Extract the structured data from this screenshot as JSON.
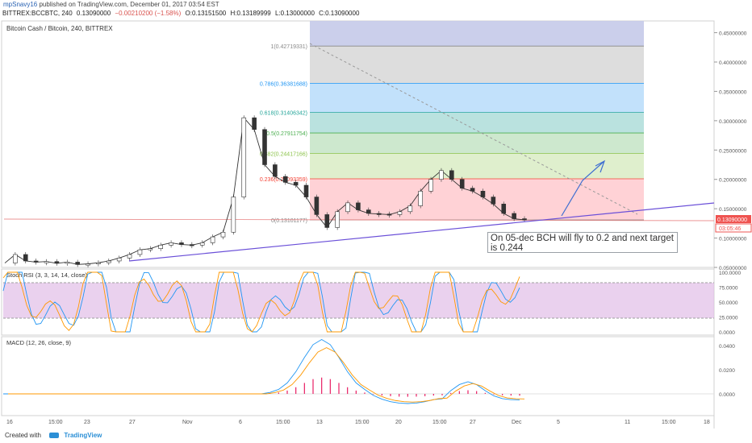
{
  "header": {
    "user": "mpSnavy16",
    "published": "published on TradingView.com, December 01, 2017 03:54 EST",
    "symbol": "BITTREX:BCCBTC, 240",
    "last": "0.13090000",
    "change": "−0.00210200 (−1.58%)",
    "open": "O:0.13151500",
    "high": "H:0.13189999",
    "low": "L:0.13000000",
    "close": "C:0.13090000"
  },
  "chart_title": "Bitcoin Cash / Bitcoin, 240, BITTREX",
  "price_axis": {
    "ticks": [
      "0.45000000",
      "0.40000000",
      "0.35000000",
      "0.30000000",
      "0.25000000",
      "0.20000000",
      "0.15000000",
      "0.10000000",
      "0.05000000"
    ],
    "current_price": "0.13090000",
    "countdown": "03:05:46"
  },
  "x_axis": {
    "labels": [
      "16",
      "15:00",
      "23",
      "27",
      "Nov",
      "6",
      "15:00",
      "13",
      "15:00",
      "20",
      "15:00",
      "27",
      "Dec",
      "5",
      "11",
      "15:00",
      "18"
    ]
  },
  "fib_levels": [
    {
      "label": "1(0.42719331)",
      "value": 0.42719331,
      "color": "#888888"
    },
    {
      "label": "0.786(0.36381688)",
      "value": 0.36381688,
      "color": "#2196f3"
    },
    {
      "label": "0.618(0.31406342)",
      "value": 0.31406342,
      "color": "#26a69a"
    },
    {
      "label": "0.5(0.27911754)",
      "value": 0.27911754,
      "color": "#4caf50"
    },
    {
      "label": "0.382(0.24417166)",
      "value": 0.24417166,
      "color": "#8bc34a"
    },
    {
      "label": "0.236(0.20093359)",
      "value": 0.20093359,
      "color": "#f44336"
    },
    {
      "label": "0(0.13101177)",
      "value": 0.13101177,
      "color": "#888888"
    }
  ],
  "annotation": "On 05-dec BCH will fly to 0.2 and next target is 0.244",
  "stoch": {
    "title": "Stoch RSI (3, 3, 14, 14, close)",
    "ticks": [
      "100.0000",
      "75.0000",
      "50.0000",
      "25.0000",
      "0.0000"
    ]
  },
  "macd": {
    "title": "MACD (12, 26, close, 9)",
    "ticks": [
      "0.0400",
      "0.0200",
      "0.0000"
    ]
  },
  "footer": {
    "created": "Created with",
    "brand": "TradingView"
  },
  "chart_data": {
    "type": "line",
    "price_range": [
      0.05,
      0.47
    ],
    "price_path": [
      [
        0,
        0.0575
      ],
      [
        1,
        0.072
      ],
      [
        2,
        0.061
      ],
      [
        3,
        0.059
      ],
      [
        4,
        0.06
      ],
      [
        5,
        0.057
      ],
      [
        6,
        0.059
      ],
      [
        7,
        0.055
      ],
      [
        8,
        0.056
      ],
      [
        9,
        0.058
      ],
      [
        10,
        0.061
      ],
      [
        11,
        0.066
      ],
      [
        12,
        0.072
      ],
      [
        13,
        0.08
      ],
      [
        14,
        0.082
      ],
      [
        15,
        0.088
      ],
      [
        16,
        0.092
      ],
      [
        17,
        0.089
      ],
      [
        18,
        0.088
      ],
      [
        19,
        0.092
      ],
      [
        20,
        0.102
      ],
      [
        21,
        0.11
      ],
      [
        22,
        0.17
      ],
      [
        23,
        0.305
      ],
      [
        24,
        0.285
      ],
      [
        25,
        0.225
      ],
      [
        26,
        0.205
      ],
      [
        27,
        0.195
      ],
      [
        28,
        0.19
      ],
      [
        29,
        0.17
      ],
      [
        30,
        0.14
      ],
      [
        31,
        0.118
      ],
      [
        32,
        0.145
      ],
      [
        33,
        0.16
      ],
      [
        34,
        0.148
      ],
      [
        35,
        0.142
      ],
      [
        36,
        0.141
      ],
      [
        37,
        0.14
      ],
      [
        38,
        0.145
      ],
      [
        39,
        0.155
      ],
      [
        40,
        0.18
      ],
      [
        41,
        0.2
      ],
      [
        42,
        0.215
      ],
      [
        43,
        0.2
      ],
      [
        44,
        0.185
      ],
      [
        45,
        0.18
      ],
      [
        46,
        0.17
      ],
      [
        47,
        0.158
      ],
      [
        48,
        0.142
      ],
      [
        49,
        0.133
      ],
      [
        50,
        0.131
      ]
    ],
    "trendline": [
      [
        0.0575,
        "Oct 24"
      ],
      [
        0.155,
        "Dec 18"
      ]
    ],
    "projection_arrow": [
      "0.131 -> 0.2 -> 0.244"
    ]
  }
}
